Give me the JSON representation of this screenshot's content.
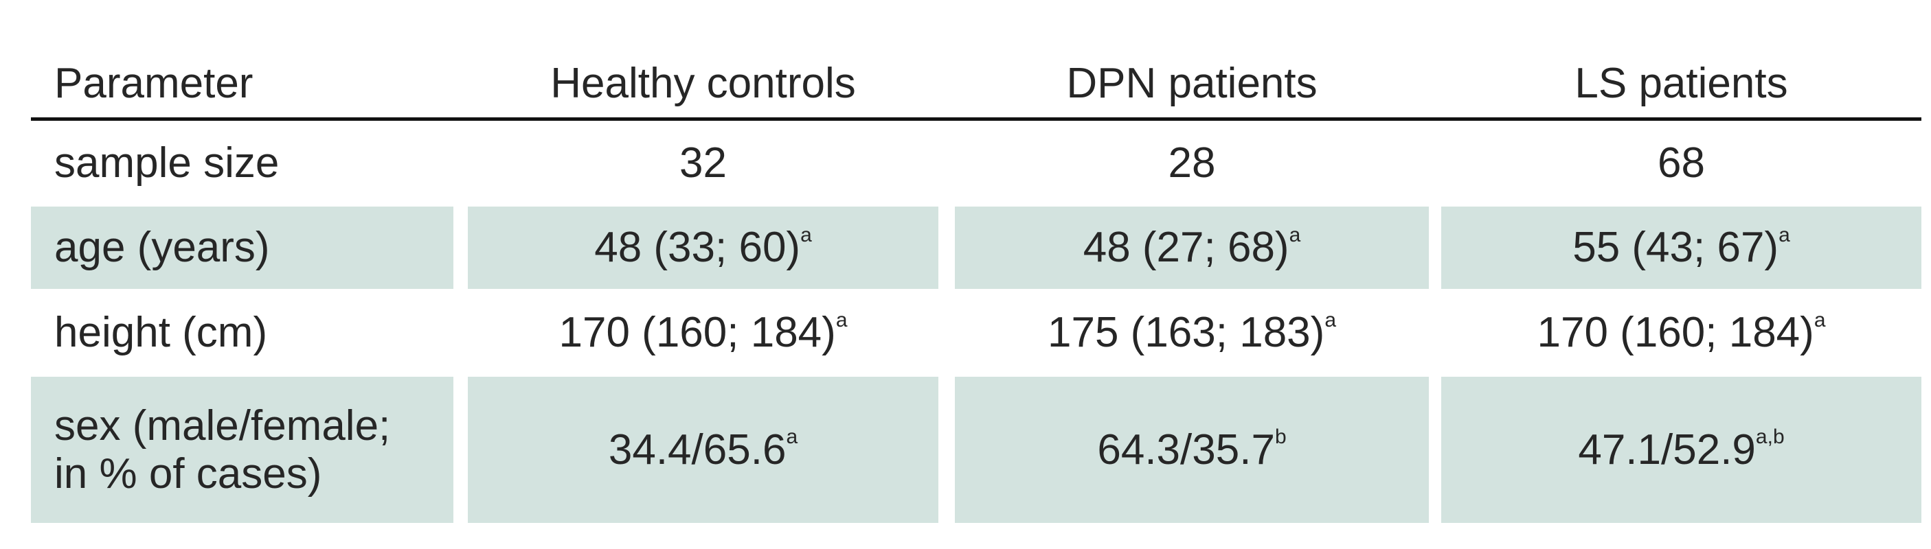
{
  "table": {
    "header": [
      "Parameter",
      "Healthy controls",
      "DPN patients",
      "LS patients"
    ],
    "rows": [
      {
        "label": [
          "sample size"
        ],
        "cells": [
          {
            "text": "32"
          },
          {
            "text": "28"
          },
          {
            "text": "68"
          }
        ]
      },
      {
        "label": [
          "age (years)"
        ],
        "cells": [
          {
            "text": "48 (33; 60)",
            "sup": "a"
          },
          {
            "text": "48 (27; 68)",
            "sup": "a"
          },
          {
            "text": "55 (43; 67)",
            "sup": "a"
          }
        ]
      },
      {
        "label": [
          "height (cm)"
        ],
        "cells": [
          {
            "text": "170 (160; 184)",
            "sup": "a"
          },
          {
            "text": "175 (163; 183)",
            "sup": "a"
          },
          {
            "text": "170 (160; 184)",
            "sup": "a"
          }
        ]
      },
      {
        "label": [
          "sex (male/female;",
          "in % of cases)"
        ],
        "cells": [
          {
            "text": "34.4/65.6",
            "sup": "a"
          },
          {
            "text": "64.3/35.7",
            "sup": "b"
          },
          {
            "text": "47.1/52.9",
            "sup": "a,b"
          }
        ]
      }
    ]
  }
}
